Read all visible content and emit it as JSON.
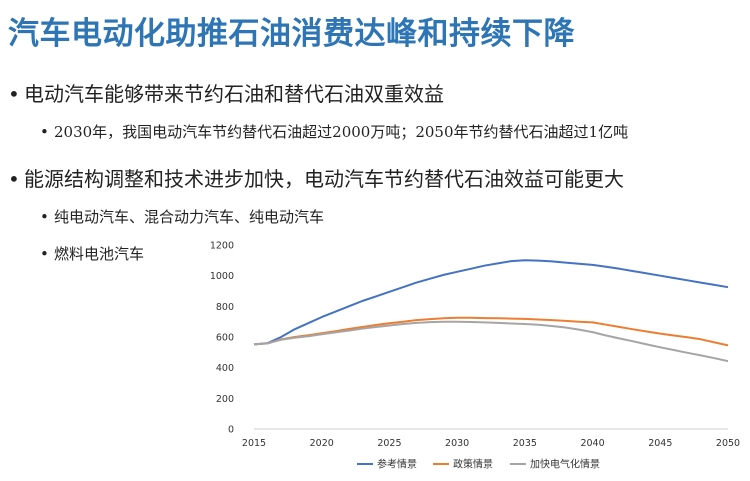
{
  "slide": {
    "title": "汽车电动化助推石油消费达峰和持续下降",
    "bullet_char": "•",
    "bullets": [
      "电动汽车能够带来节约石油和替代石油双重效益",
      "2030年，我国电动汽车节约替代石油超过2000万吨；2050年节约替代石油超过1亿吨",
      "能源结构调整和技术进步加快，电动汽车节约替代石油效益可能更大",
      "纯电动汽车、混合动力汽车、纯电动汽车",
      "燃料电池汽车"
    ]
  },
  "chart_data": {
    "type": "line",
    "x": [
      2015,
      2016,
      2017,
      2018,
      2019,
      2020,
      2021,
      2022,
      2023,
      2024,
      2025,
      2026,
      2027,
      2028,
      2029,
      2030,
      2031,
      2032,
      2033,
      2034,
      2035,
      2036,
      2037,
      2038,
      2039,
      2040,
      2041,
      2042,
      2043,
      2044,
      2045,
      2046,
      2047,
      2048,
      2049,
      2050
    ],
    "xticks": [
      2015,
      2020,
      2025,
      2030,
      2035,
      2040,
      2045,
      2050
    ],
    "yticks": [
      0,
      200,
      400,
      600,
      800,
      1000,
      1200
    ],
    "ylim": [
      0,
      1200
    ],
    "xlim": [
      2015,
      2050
    ],
    "grid": false,
    "legend_position": "bottom",
    "series": [
      {
        "name": "参考情景",
        "color": "#4472c4",
        "values": [
          552,
          560,
          600,
          650,
          690,
          730,
          765,
          800,
          835,
          865,
          895,
          925,
          955,
          980,
          1005,
          1025,
          1045,
          1065,
          1080,
          1095,
          1100,
          1098,
          1093,
          1085,
          1078,
          1070,
          1058,
          1045,
          1030,
          1015,
          1000,
          985,
          970,
          955,
          940,
          925
        ]
      },
      {
        "name": "政策情景",
        "color": "#ed7d31",
        "values": [
          552,
          558,
          585,
          600,
          612,
          625,
          638,
          652,
          665,
          678,
          690,
          700,
          710,
          717,
          722,
          725,
          725,
          723,
          722,
          720,
          718,
          714,
          710,
          705,
          700,
          695,
          680,
          665,
          650,
          636,
          622,
          610,
          598,
          585,
          565,
          545
        ]
      },
      {
        "name": "加快电气化情景",
        "color": "#a5a5a5",
        "values": [
          552,
          558,
          582,
          595,
          605,
          618,
          630,
          642,
          655,
          665,
          675,
          685,
          692,
          697,
          700,
          700,
          698,
          695,
          692,
          688,
          685,
          680,
          672,
          662,
          648,
          632,
          610,
          590,
          572,
          552,
          533,
          515,
          497,
          480,
          462,
          443
        ]
      }
    ]
  }
}
